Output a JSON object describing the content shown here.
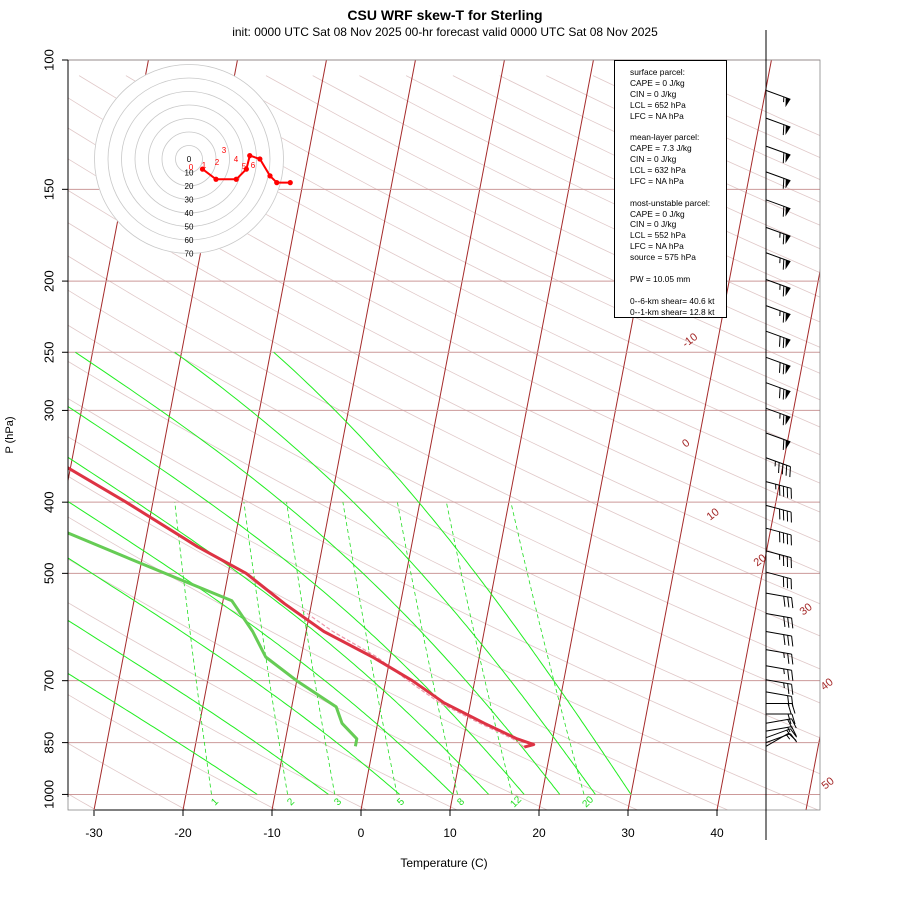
{
  "title": "CSU WRF skew-T for Sterling",
  "subtitle": "init: 0000 UTC Sat 08 Nov 2025     00-hr forecast valid 0000 UTC Sat 08 Nov 2025",
  "chart_data": {
    "type": "skew-t",
    "xlabel": "Temperature (C)",
    "ylabel": "P (hPa)",
    "xlim": [
      -33,
      51
    ],
    "ylim": [
      1050,
      100
    ],
    "x_ticks": [
      -30,
      -20,
      -10,
      0,
      10,
      20,
      30,
      40
    ],
    "pressure_ticks": [
      100,
      150,
      200,
      250,
      300,
      400,
      500,
      700,
      850,
      1000
    ],
    "isotherm_labels": [
      "-10",
      "0",
      "10",
      "20",
      "30",
      "40",
      "50"
    ],
    "mixing_ratio_labels": [
      "1",
      "2",
      "3",
      "5",
      "8",
      "12",
      "20"
    ],
    "temperature_profile": {
      "name": "temperature",
      "color": "#dd3344",
      "points": [
        {
          "p": 110,
          "t": -58
        },
        {
          "p": 130,
          "t": -61
        },
        {
          "p": 150,
          "t": -65
        },
        {
          "p": 170,
          "t": -67
        },
        {
          "p": 190,
          "t": -67
        },
        {
          "p": 200,
          "t": -65
        },
        {
          "p": 215,
          "t": -63
        },
        {
          "p": 240,
          "t": -60
        },
        {
          "p": 270,
          "t": -56
        },
        {
          "p": 300,
          "t": -52
        },
        {
          "p": 340,
          "t": -44
        },
        {
          "p": 400,
          "t": -33
        },
        {
          "p": 460,
          "t": -24
        },
        {
          "p": 500,
          "t": -18
        },
        {
          "p": 550,
          "t": -13
        },
        {
          "p": 600,
          "t": -8
        },
        {
          "p": 650,
          "t": -2
        },
        {
          "p": 700,
          "t": 3
        },
        {
          "p": 750,
          "t": 7
        },
        {
          "p": 800,
          "t": 12
        },
        {
          "p": 840,
          "t": 16
        },
        {
          "p": 855,
          "t": 18
        },
        {
          "p": 862,
          "t": 17
        }
      ]
    },
    "dewpoint_profile": {
      "name": "dewpoint",
      "color": "#66cc55",
      "points": [
        {
          "p": 120,
          "t": -80
        },
        {
          "p": 150,
          "t": -82
        },
        {
          "p": 200,
          "t": -87
        },
        {
          "p": 230,
          "t": -91
        },
        {
          "p": 260,
          "t": -93
        },
        {
          "p": 300,
          "t": -90
        },
        {
          "p": 340,
          "t": -73
        },
        {
          "p": 400,
          "t": -49
        },
        {
          "p": 440,
          "t": -39
        },
        {
          "p": 490,
          "t": -29
        },
        {
          "p": 545,
          "t": -19
        },
        {
          "p": 600,
          "t": -16
        },
        {
          "p": 650,
          "t": -14
        },
        {
          "p": 700,
          "t": -10
        },
        {
          "p": 760,
          "t": -5
        },
        {
          "p": 800,
          "t": -4
        },
        {
          "p": 840,
          "t": -2
        },
        {
          "p": 860,
          "t": -2
        }
      ]
    },
    "parcel_profile": {
      "name": "parcel",
      "points": [
        {
          "p": 862,
          "t": 17
        },
        {
          "p": 840,
          "t": 15.5
        },
        {
          "p": 800,
          "t": 11.5
        },
        {
          "p": 750,
          "t": 6.5
        },
        {
          "p": 700,
          "t": 2.5
        },
        {
          "p": 650,
          "t": -1.5
        },
        {
          "p": 600,
          "t": -7
        },
        {
          "p": 560,
          "t": -11
        }
      ]
    },
    "hodograph": {
      "ring_labels": [
        "0",
        "10",
        "20",
        "30",
        "40",
        "50",
        "60",
        "70"
      ],
      "point_labels": [
        "0",
        "1",
        "2",
        "3",
        "4",
        "5",
        "6"
      ],
      "points_uv": [
        {
          "u": 4,
          "v": -3
        },
        {
          "u": 8,
          "v": -6
        },
        {
          "u": 14,
          "v": -6
        },
        {
          "u": 17,
          "v": -3
        },
        {
          "u": 18,
          "v": 1
        },
        {
          "u": 21,
          "v": 0
        },
        {
          "u": 24,
          "v": -5
        },
        {
          "u": 26,
          "v": -7
        },
        {
          "u": 30,
          "v": -7
        }
      ]
    },
    "wind_barbs": [
      {
        "p": 110,
        "dir": 290,
        "kt": 55
      },
      {
        "p": 120,
        "dir": 290,
        "kt": 58
      },
      {
        "p": 131,
        "dir": 290,
        "kt": 60
      },
      {
        "p": 142,
        "dir": 290,
        "kt": 62
      },
      {
        "p": 155,
        "dir": 290,
        "kt": 62
      },
      {
        "p": 169,
        "dir": 290,
        "kt": 64
      },
      {
        "p": 183,
        "dir": 290,
        "kt": 64
      },
      {
        "p": 199,
        "dir": 290,
        "kt": 65
      },
      {
        "p": 216,
        "dir": 290,
        "kt": 66
      },
      {
        "p": 234,
        "dir": 290,
        "kt": 68
      },
      {
        "p": 254,
        "dir": 290,
        "kt": 70
      },
      {
        "p": 275,
        "dir": 290,
        "kt": 68
      },
      {
        "p": 298,
        "dir": 290,
        "kt": 65
      },
      {
        "p": 322,
        "dir": 290,
        "kt": 60
      },
      {
        "p": 348,
        "dir": 290,
        "kt": 45
      },
      {
        "p": 375,
        "dir": 285,
        "kt": 45
      },
      {
        "p": 404,
        "dir": 285,
        "kt": 40
      },
      {
        "p": 434,
        "dir": 285,
        "kt": 40
      },
      {
        "p": 466,
        "dir": 285,
        "kt": 35
      },
      {
        "p": 498,
        "dir": 285,
        "kt": 30
      },
      {
        "p": 532,
        "dir": 280,
        "kt": 30
      },
      {
        "p": 567,
        "dir": 280,
        "kt": 30
      },
      {
        "p": 600,
        "dir": 280,
        "kt": 30
      },
      {
        "p": 635,
        "dir": 280,
        "kt": 25
      },
      {
        "p": 668,
        "dir": 280,
        "kt": 25
      },
      {
        "p": 698,
        "dir": 280,
        "kt": 25
      },
      {
        "p": 725,
        "dir": 280,
        "kt": 20
      },
      {
        "p": 752,
        "dir": 270,
        "kt": 20
      },
      {
        "p": 777,
        "dir": 270,
        "kt": 20
      },
      {
        "p": 800,
        "dir": 260,
        "kt": 20
      },
      {
        "p": 820,
        "dir": 260,
        "kt": 15
      },
      {
        "p": 837,
        "dir": 250,
        "kt": 15
      },
      {
        "p": 850,
        "dir": 250,
        "kt": 15
      },
      {
        "p": 860,
        "dir": 240,
        "kt": 10
      }
    ]
  },
  "info_box": {
    "lines": [
      "surface parcel:",
      "CAPE = 0 J/kg",
      "CIN = 0 J/kg",
      "LCL = 652 hPa",
      "LFC = NA hPa",
      "",
      "mean-layer parcel:",
      "CAPE = 7.3 J/kg",
      "CIN = 0 J/kg",
      "LCL = 632 hPa",
      "LFC = NA hPa",
      "",
      "most-unstable parcel:",
      "CAPE = 0 J/kg",
      "CIN = 0 J/kg",
      "LCL = 552 hPa",
      "LFC = NA hPa",
      "source = 575 hPa",
      "",
      "PW =  10.05 mm",
      "",
      "0--6-km shear= 40.6 kt",
      "0--1-km shear= 12.8 kt"
    ]
  },
  "colors": {
    "isotherm": "#a52a2a",
    "isobar": "#cc9999",
    "dry_adiabat": "#e0c8c8",
    "moist_adiabat": "#22ee22",
    "mixing_ratio": "#22dd22",
    "temperature": "#dd3344",
    "dewpoint": "#66cc55",
    "parcel": "#ee99aa",
    "hodograph": "#ff0000"
  }
}
